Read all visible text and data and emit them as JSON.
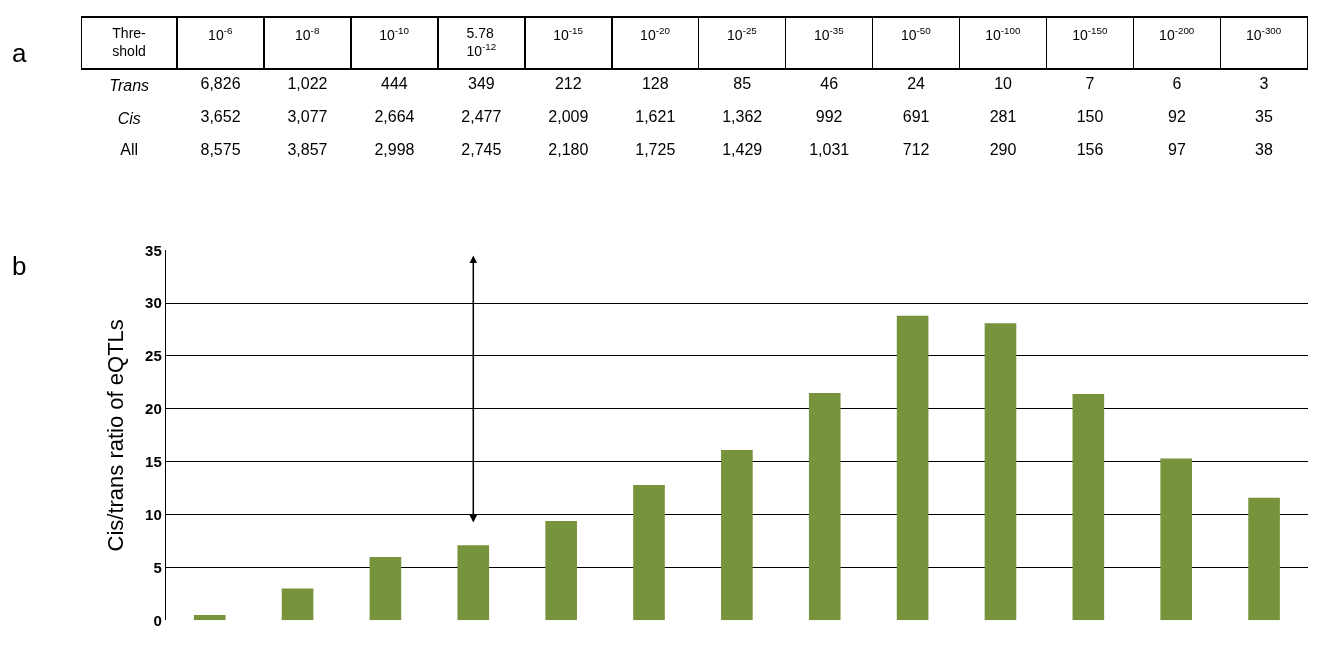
{
  "chart_data": [
    {
      "type": "other",
      "annotations": [
        "a",
        "Thre-\nshold",
        "10$^{-6}$",
        "10$^{-8}$",
        "10$^{-10}$",
        "5.78\n10$^{-12}$",
        "10$^{-15}$",
        "10$^{-20}$",
        "10$^{-25}$",
        "10$^{-35}$",
        "10$^{-50}$",
        "10$^{-100}$",
        "10$^{-150}$",
        "10$^{-200}$",
        "10$^{-300}$",
        "Trans",
        "6,826",
        "1,022",
        "444",
        "349",
        "212",
        "128",
        "85",
        "46",
        "24",
        "10",
        "7",
        "6",
        "3",
        "Cis",
        "3,652",
        "3,077",
        "2,664",
        "2,477",
        "2,009",
        "1,621",
        "1,362",
        "992",
        "691",
        "281",
        "150",
        "92",
        "35",
        "All",
        "8,575",
        "3,857",
        "2,998",
        "2,745",
        "2,180",
        "1,725",
        "1,429",
        "1,031",
        "712",
        "290",
        "156",
        "97",
        "38"
      ]
    },
    {
      "type": "bar",
      "categories": [
        null,
        null,
        null,
        null,
        null,
        null,
        null,
        null,
        null,
        null,
        null,
        null,
        null
      ],
      "values": [
        0.5,
        3,
        6,
        7.1,
        9.4,
        12.8,
        16.1,
        21.5,
        28.8,
        28.1,
        21.4,
        15.3,
        11.6
      ],
      "color": "#77933c",
      "ylabel": "Cis/trans ratio of eQTLs",
      "annotations": [
        "b"
      ],
      "ylim": [
        0,
        35
      ],
      "yticks": [
        0,
        5,
        10,
        15,
        20,
        25,
        30,
        35
      ],
      "grid": "y",
      "legend": false
    }
  ]
}
